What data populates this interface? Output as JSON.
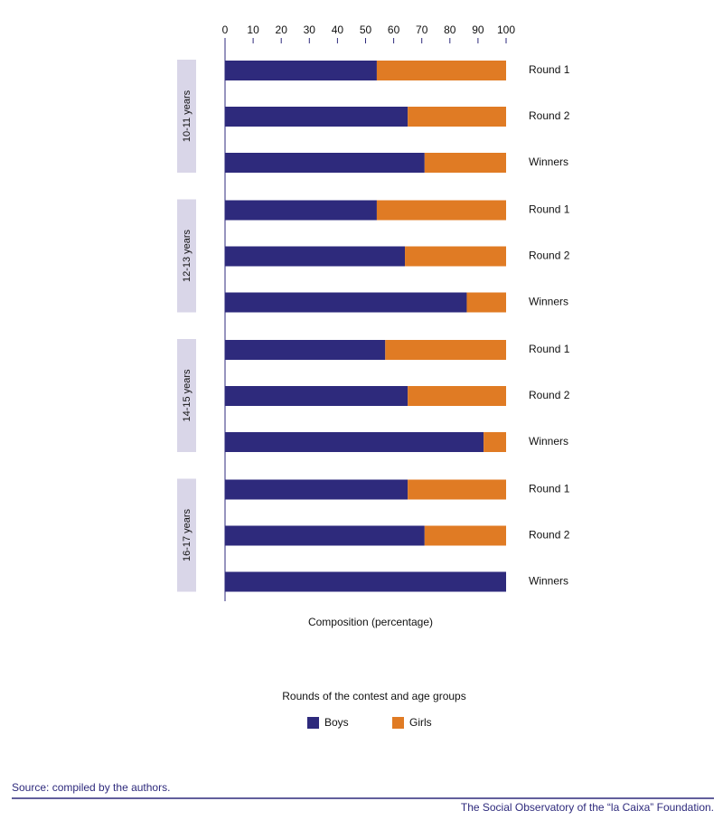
{
  "chart_data": {
    "type": "stacked-bar",
    "orientation": "horizontal",
    "xlabel": "Composition (percentage)",
    "legend_title": "Rounds of the contest and age groups",
    "groups": [
      "10-11 years",
      "12-13 years",
      "14-15 years",
      "16-17 years"
    ],
    "categories": [
      "Round 1",
      "Round 2",
      "Winners",
      "Round 1",
      "Round 2",
      "Winners",
      "Round 1",
      "Round 2",
      "Winners",
      "Round 1",
      "Round 2",
      "Winners"
    ],
    "series": [
      {
        "name": "Boys",
        "color": "#2e2a7c",
        "values": [
          54,
          65,
          71,
          54,
          64,
          86,
          57,
          65,
          92,
          65,
          71,
          100
        ]
      },
      {
        "name": "Girls",
        "color": "#e07b24",
        "values": [
          46,
          35,
          29,
          46,
          36,
          14,
          43,
          35,
          8,
          35,
          29,
          0
        ]
      }
    ],
    "xlim": [
      0,
      100
    ],
    "xticks": [
      0,
      10,
      20,
      30,
      40,
      50,
      60,
      70,
      80,
      90,
      100
    ],
    "legend_position": "bottom",
    "source": "Source: compiled by the authors.",
    "footer": "The Social Observatory of the “la Caixa” Foundation."
  }
}
